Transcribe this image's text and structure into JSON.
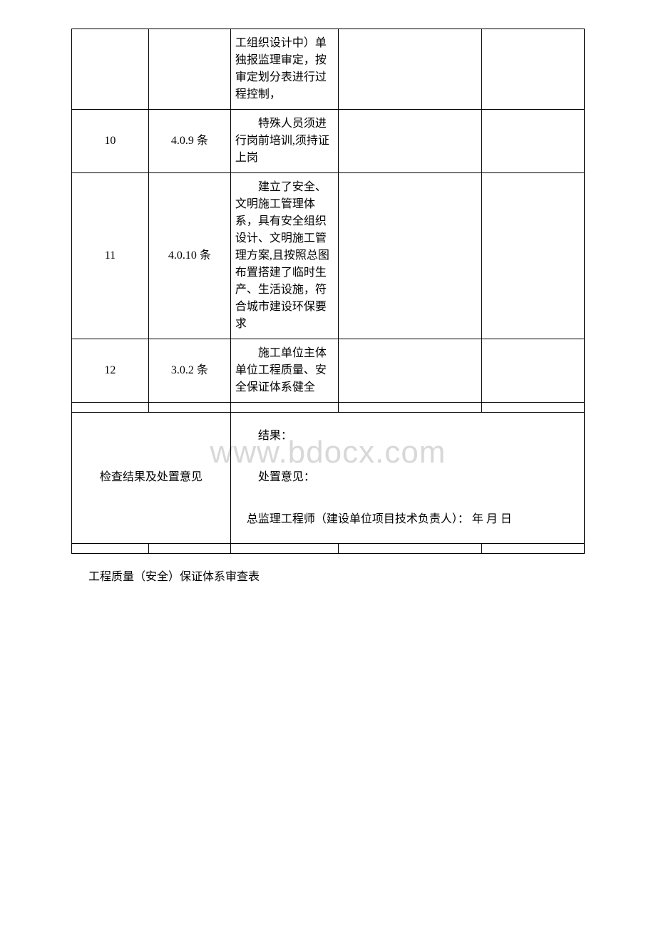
{
  "rows": [
    {
      "num": "",
      "code": "",
      "desc": "工组织设计中）单独报监理审定，按审定划分表进行过程控制，"
    },
    {
      "num": "10",
      "code": "4.0.9 条",
      "desc": "特殊人员须进行岗前培训,须持证上岗"
    },
    {
      "num": "11",
      "code": "4.0.10 条",
      "desc": "建立了安全、文明施工管理体系，具有安全组织设计、文明施工管理方案,且按照总图布置搭建了临时生产、生活设施，符合城市建设环保要求"
    },
    {
      "num": "12",
      "code": "3.0.2 条",
      "desc": "施工单位主体单位工程质量、安全保证体系健全"
    }
  ],
  "result": {
    "label": "检查结果及处置意见",
    "line1": "结果：",
    "line2": "处置意见：",
    "line3": "总监理工程师（建设单位项目技术负责人）： 年 月 日"
  },
  "footer": "工程质量（安全）保证体系审查表",
  "watermark": "www.bdocx.com"
}
